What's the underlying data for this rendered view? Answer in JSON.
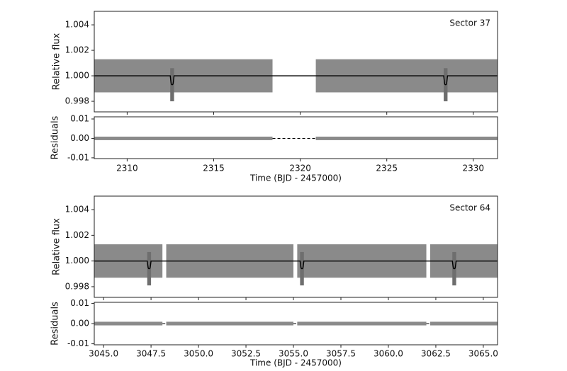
{
  "chart_data": [
    {
      "type": "lightcurve",
      "title": "Sector 37",
      "xlabel": "Time (BJD - 2457000)",
      "ylabel": "Relative flux",
      "residual_ylabel": "Residuals",
      "xlim": [
        2308.1,
        2331.4
      ],
      "xticks": [
        2310,
        2315,
        2320,
        2325,
        2330
      ],
      "ylim": [
        0.99717,
        1.00506
      ],
      "yticks": [
        {
          "value": 0.998,
          "label": "0.998"
        },
        {
          "value": 1.0,
          "label": "1.000"
        },
        {
          "value": 1.002,
          "label": "1.002"
        },
        {
          "value": 1.004,
          "label": "1.004"
        }
      ],
      "residual_ylim": [
        -0.0104,
        0.0111
      ],
      "residual_yticks": [
        -0.01,
        {
          "value": 0,
          "label": "0.00"
        },
        0.01
      ],
      "segments": [
        [
          2308.1,
          2318.4
        ],
        [
          2320.9,
          2331.4
        ]
      ],
      "baseline": 1.0,
      "transit_times": [
        2312.6,
        2328.4
      ],
      "transit_depth": 0.0007,
      "transit_duration": 0.22,
      "flux_scatter": 0.0013,
      "residual_scatter": 0.0009,
      "color": "#8a8a8a",
      "model_color": "#000000"
    },
    {
      "type": "lightcurve",
      "title": "Sector 64",
      "xlabel": "Time (BJD - 2457000)",
      "ylabel": "Relative flux",
      "residual_ylabel": "Residuals",
      "xlim": [
        3044.51,
        3065.75
      ],
      "xticks": [
        {
          "value": 3045,
          "label": "3045.0"
        },
        {
          "value": 3047.5,
          "label": "3047.5"
        },
        {
          "value": 3050,
          "label": "3050.0"
        },
        {
          "value": 3052.5,
          "label": "3052.5"
        },
        {
          "value": 3055,
          "label": "3055.0"
        },
        {
          "value": 3057.5,
          "label": "3057.5"
        },
        {
          "value": 3060,
          "label": "3060.0"
        },
        {
          "value": 3062.5,
          "label": "3062.5"
        },
        {
          "value": 3065,
          "label": "3065.0"
        }
      ],
      "ylim": [
        0.99717,
        1.00505
      ],
      "yticks": [
        {
          "value": 0.998,
          "label": "0.998"
        },
        {
          "value": 1.0,
          "label": "1.000"
        },
        {
          "value": 1.002,
          "label": "1.002"
        },
        {
          "value": 1.004,
          "label": "1.004"
        }
      ],
      "residual_ylim": [
        -0.0105,
        0.0105
      ],
      "residual_yticks": [
        -0.01,
        {
          "value": 0,
          "label": "0.00"
        },
        0.01
      ],
      "segments": [
        [
          3044.51,
          3048.1
        ],
        [
          3048.3,
          3055.0
        ],
        [
          3055.2,
          3062.0
        ],
        [
          3062.2,
          3065.75
        ]
      ],
      "baseline": 1.0,
      "transit_times": [
        3047.4,
        3055.45,
        3063.47
      ],
      "transit_depth": 0.0006,
      "transit_duration": 0.2,
      "flux_scatter": 0.0013,
      "residual_scatter": 0.0009,
      "color": "#8a8a8a",
      "model_color": "#000000"
    }
  ]
}
